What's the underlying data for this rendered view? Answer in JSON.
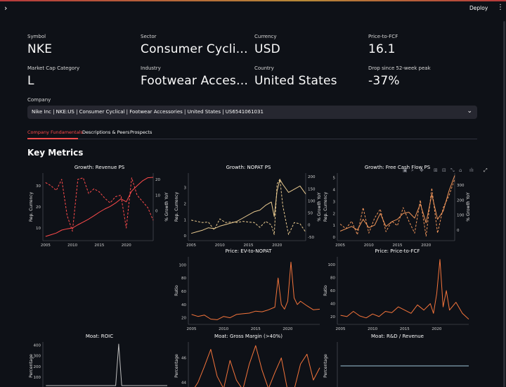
{
  "header": {
    "menu_icon": "chevron-right-icon",
    "deploy_label": "Deploy",
    "more_icon": "kebab-menu-icon"
  },
  "metrics": [
    {
      "label": "Symbol",
      "value": "NKE"
    },
    {
      "label": "Sector",
      "value": "Consumer Cyclical"
    },
    {
      "label": "Currency",
      "value": "USD"
    },
    {
      "label": "Price-to-FCF",
      "value": "16.1"
    },
    {
      "label": "Market Cap Category",
      "value": "L"
    },
    {
      "label": "Industry",
      "value": "Footwear Accessories"
    },
    {
      "label": "Country",
      "value": "United States"
    },
    {
      "label": "Drop since 52-week peak",
      "value": "-37%"
    }
  ],
  "company": {
    "label": "Company",
    "selected": "Nike Inc | NKE:US | Consumer Cyclical | Footwear Accessories | United States | US6541061031"
  },
  "tabs": [
    "Company Fundamentals",
    "Descriptions & Peers",
    "Prospects"
  ],
  "section_title": "Key Metrics",
  "colors": {
    "red": "#ff4b4b",
    "sand": "#e8c98f",
    "orange": "#f0955a",
    "coral": "#f4743b",
    "grey": "#bdbdbd"
  },
  "chart_data": [
    {
      "id": "rev",
      "type": "line",
      "title": "Growth: Revenue PS",
      "ylabel": "Rep. Currency",
      "y2label": "% Growth YoY",
      "xticks": [
        2005,
        2010,
        2015,
        2020
      ],
      "xlim": [
        2004.5,
        2025
      ],
      "yticks": [
        10,
        20,
        30
      ],
      "ylim": [
        4,
        36
      ],
      "y2ticks": [
        0,
        10,
        20
      ],
      "y2lim": [
        -19,
        24
      ],
      "series": [
        {
          "axis": "y",
          "dash": false,
          "x": [
            2005,
            2006,
            2007,
            2008,
            2009,
            2010,
            2011,
            2012,
            2013,
            2014,
            2015,
            2016,
            2017,
            2018,
            2019,
            2020,
            2021,
            2022,
            2023,
            2024,
            2025
          ],
          "y": [
            6,
            6.8,
            7.6,
            9,
            9.6,
            10,
            11.5,
            12.8,
            14.2,
            15.8,
            17.5,
            19,
            20.2,
            21.8,
            23.8,
            22.4,
            27.5,
            30,
            32.3,
            33.8,
            34
          ]
        },
        {
          "axis": "y2",
          "dash": true,
          "x": [
            2005,
            2006,
            2007,
            2008,
            2009,
            2010,
            2011,
            2012,
            2013,
            2014,
            2015,
            2016,
            2017,
            2018,
            2019,
            2020,
            2021,
            2022,
            2023,
            2024,
            2025
          ],
          "y": [
            18,
            16,
            13,
            20,
            -3,
            -13,
            20,
            21,
            11,
            14,
            12,
            8,
            5,
            9,
            10,
            -11,
            21,
            10,
            6,
            2,
            -6
          ]
        }
      ]
    },
    {
      "id": "nopat",
      "type": "line",
      "title": "Growth: NOPAT PS",
      "ylabel": "Rep. Currency",
      "y2label": "% Growth YoY",
      "xticks": [
        2005,
        2010,
        2015,
        2020
      ],
      "xlim": [
        2004.5,
        2025
      ],
      "yticks": [
        0,
        1,
        2,
        3
      ],
      "ylim": [
        -0.3,
        3.9
      ],
      "y2ticks": [
        -50,
        0,
        50,
        100,
        150,
        200
      ],
      "y2lim": [
        -65,
        215
      ],
      "series": [
        {
          "axis": "y",
          "dash": false,
          "x": [
            2005,
            2006,
            2007,
            2008,
            2009,
            2010,
            2011,
            2012,
            2013,
            2014,
            2015,
            2016,
            2017,
            2018,
            2019,
            2019.5,
            2020,
            2020.5,
            2021,
            2022,
            2023,
            2024,
            2025
          ],
          "y": [
            0.15,
            0.25,
            0.35,
            0.5,
            0.45,
            0.6,
            0.7,
            0.8,
            0.9,
            1.1,
            1.3,
            1.5,
            1.6,
            1.9,
            2.1,
            1.2,
            2.8,
            3.5,
            3.2,
            2.7,
            2.9,
            3.1,
            2.6
          ]
        },
        {
          "axis": "y2",
          "dash": true,
          "x": [
            2005,
            2006,
            2007,
            2008,
            2009,
            2010,
            2011,
            2012,
            2013,
            2014,
            2015,
            2016,
            2017,
            2018,
            2019,
            2019.5,
            2020,
            2020.5,
            2021,
            2022,
            2023,
            2024,
            2025
          ],
          "y": [
            20,
            15,
            10,
            12,
            -20,
            25,
            10,
            12,
            10,
            15,
            12,
            10,
            -10,
            15,
            0,
            -40,
            170,
            190,
            80,
            -40,
            10,
            5,
            -30
          ]
        }
      ]
    },
    {
      "id": "fcf",
      "type": "line",
      "title": "Growth: Free Cash Flow PS",
      "ylabel": "Rep. Currency",
      "y2label": "% Growth YoY",
      "xticks": [
        2005,
        2010,
        2015,
        2020
      ],
      "xlim": [
        2004.5,
        2025
      ],
      "yticks": [
        0,
        1,
        2,
        3,
        4,
        5
      ],
      "ylim": [
        -0.3,
        5.4
      ],
      "y2ticks": [
        0,
        100,
        200,
        300
      ],
      "y2lim": [
        -70,
        380
      ],
      "series": [
        {
          "axis": "y",
          "dash": false,
          "x": [
            2005,
            2006,
            2007,
            2008,
            2009,
            2010,
            2011,
            2012,
            2013,
            2014,
            2015,
            2016,
            2017,
            2018,
            2019,
            2020,
            2021,
            2022,
            2023,
            2024,
            2025
          ],
          "y": [
            0.5,
            0.7,
            0.9,
            0.6,
            1.5,
            0.8,
            1.0,
            2.0,
            0.9,
            1.3,
            1.5,
            2.0,
            2.1,
            1.6,
            2.8,
            1.2,
            3.6,
            1.5,
            2.2,
            3.9,
            5.2
          ]
        },
        {
          "axis": "y2",
          "dash": true,
          "x": [
            2005,
            2006,
            2007,
            2008,
            2009,
            2010,
            2011,
            2012,
            2013,
            2014,
            2015,
            2016,
            2017,
            2018,
            2019,
            2020,
            2021,
            2022,
            2023,
            2024,
            2025
          ],
          "y": [
            40,
            10,
            60,
            -30,
            150,
            -20,
            80,
            140,
            -10,
            60,
            30,
            150,
            60,
            -20,
            200,
            -40,
            280,
            -20,
            150,
            230,
            340
          ]
        }
      ]
    },
    {
      "id": "evnopat",
      "type": "line",
      "title": "Price: EV-to-NOPAT",
      "ylabel": "Ratio",
      "y2label": "",
      "xticks": [
        2005,
        2010,
        2015,
        2020
      ],
      "xlim": [
        2004.5,
        2025
      ],
      "yticks": [
        20,
        40,
        60,
        80,
        100
      ],
      "ylim": [
        10,
        112
      ],
      "series": [
        {
          "axis": "y",
          "dash": false,
          "x": [
            2005,
            2006,
            2007,
            2008,
            2009,
            2010,
            2011,
            2012,
            2013,
            2014,
            2015,
            2016,
            2017,
            2018,
            2018.5,
            2019,
            2019.5,
            2020,
            2020.5,
            2021,
            2021.5,
            2022,
            2023,
            2024,
            2025
          ],
          "y": [
            25,
            22,
            24,
            18,
            17,
            22,
            20,
            25,
            26,
            27,
            30,
            29,
            32,
            36,
            80,
            40,
            33,
            45,
            104,
            50,
            40,
            45,
            38,
            32,
            33
          ]
        }
      ]
    },
    {
      "id": "pfcf",
      "type": "line",
      "title": "Price: Price-to-FCF",
      "ylabel": "Ratio",
      "y2label": "",
      "xticks": [
        2005,
        2010,
        2015,
        2020
      ],
      "xlim": [
        2004.5,
        2025
      ],
      "yticks": [
        20,
        40,
        60,
        80,
        100
      ],
      "ylim": [
        8,
        112
      ],
      "series": [
        {
          "axis": "y",
          "dash": false,
          "x": [
            2005,
            2006,
            2007,
            2008,
            2009,
            2010,
            2011,
            2012,
            2013,
            2014,
            2015,
            2016,
            2017,
            2018,
            2019,
            2019.5,
            2020,
            2020.5,
            2021,
            2021.5,
            2022,
            2023,
            2024,
            2025
          ],
          "y": [
            22,
            20,
            28,
            21,
            18,
            24,
            20,
            28,
            26,
            35,
            30,
            25,
            38,
            30,
            40,
            25,
            55,
            108,
            35,
            60,
            30,
            42,
            25,
            16
          ]
        }
      ]
    },
    {
      "id": "roic",
      "type": "line",
      "title": "Moat: ROIC",
      "ylabel": "Percentage",
      "y2label": "",
      "xticks": [],
      "xlim": [
        2004.5,
        2025
      ],
      "yticks": [
        100,
        200,
        300,
        400
      ],
      "ylim": [
        -20,
        430
      ],
      "series": [
        {
          "axis": "y",
          "dash": false,
          "x": [
            2005,
            2012,
            2016.5,
            2017,
            2017.5,
            2018,
            2025
          ],
          "y": [
            20,
            20,
            20,
            410,
            20,
            20,
            20
          ]
        }
      ]
    },
    {
      "id": "gm",
      "type": "line",
      "title": "Moat: Gross Margin (>40%)",
      "ylabel": "Percentage",
      "y2label": "",
      "xticks": [],
      "xlim": [
        2004.5,
        2025
      ],
      "yticks": [
        44,
        46
      ],
      "ylim": [
        43.4,
        47.3
      ],
      "series": [
        {
          "axis": "y",
          "dash": false,
          "x": [
            2005,
            2006,
            2007,
            2008,
            2009,
            2010,
            2011,
            2012,
            2013,
            2014,
            2015,
            2016,
            2017,
            2018,
            2019,
            2020,
            2021,
            2022,
            2023,
            2024,
            2025
          ],
          "y": [
            43.2,
            44,
            45.3,
            46.7,
            44.5,
            43.5,
            45.8,
            44.2,
            43.4,
            45.5,
            47,
            45,
            43.5,
            44.8,
            46,
            43.3,
            43.4,
            45.5,
            46.3,
            44.2,
            45.2
          ]
        }
      ]
    },
    {
      "id": "rd",
      "type": "line",
      "title": "Moat: R&D / Revenue",
      "ylabel": "Percentage",
      "y2label": "",
      "xticks": [],
      "xlim": [
        2004.5,
        2025
      ],
      "yticks": [],
      "ylim": [
        -1,
        1
      ],
      "series": [
        {
          "axis": "y",
          "dash": false,
          "x": [
            2005,
            2025
          ],
          "y": [
            0,
            0
          ]
        }
      ]
    }
  ]
}
